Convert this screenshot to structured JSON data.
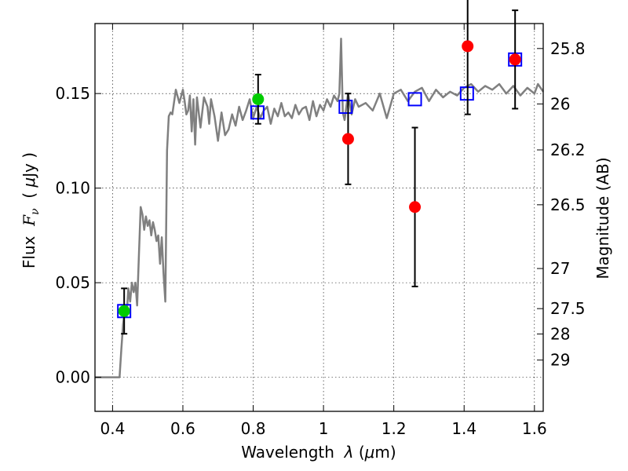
{
  "chart_data": {
    "type": "scatter",
    "xlabel_parts": [
      "Wavelength  ",
      "λ",
      " (",
      "μ",
      "m)"
    ],
    "ylabel_parts": [
      "Flux  ",
      "F",
      "ν",
      "  ( ",
      "μ",
      "Jy )"
    ],
    "y2label": "Magnitude (AB)",
    "xlim": [
      0.35,
      1.625
    ],
    "ylim": [
      -0.018,
      0.187
    ],
    "grid": true,
    "grid_style": "dotted",
    "x_ticks": [
      0.4,
      0.6,
      0.8,
      1.0,
      1.2,
      1.4,
      1.6
    ],
    "x_tick_labels": [
      "0.4",
      "0.6",
      "0.8",
      "1",
      "1.2",
      "1.4",
      "1.6"
    ],
    "y_ticks": [
      0.0,
      0.05,
      0.1,
      0.15
    ],
    "y_tick_labels": [
      "0.00",
      "0.05",
      "0.10",
      "0.15"
    ],
    "mag_ticks": [
      {
        "label": "25.8",
        "flux": 0.1738
      },
      {
        "label": "26",
        "flux": 0.1445
      },
      {
        "label": "26.2",
        "flux": 0.1202
      },
      {
        "label": "26.5",
        "flux": 0.0912
      },
      {
        "label": "27",
        "flux": 0.0575
      },
      {
        "label": "27.5",
        "flux": 0.0363
      },
      {
        "label": "28",
        "flux": 0.0229
      },
      {
        "label": "29",
        "flux": 0.0091
      }
    ],
    "model_spectrum": {
      "color": "#808080",
      "x": [
        0.35,
        0.36,
        0.37,
        0.38,
        0.39,
        0.4,
        0.41,
        0.42,
        0.425,
        0.43,
        0.435,
        0.44,
        0.445,
        0.45,
        0.455,
        0.46,
        0.465,
        0.47,
        0.475,
        0.48,
        0.485,
        0.49,
        0.495,
        0.5,
        0.505,
        0.51,
        0.515,
        0.52,
        0.525,
        0.53,
        0.535,
        0.54,
        0.545,
        0.55,
        0.555,
        0.56,
        0.565,
        0.57,
        0.58,
        0.59,
        0.6,
        0.605,
        0.61,
        0.615,
        0.62,
        0.625,
        0.63,
        0.635,
        0.64,
        0.65,
        0.66,
        0.67,
        0.675,
        0.68,
        0.69,
        0.7,
        0.71,
        0.72,
        0.73,
        0.74,
        0.75,
        0.76,
        0.77,
        0.78,
        0.79,
        0.8,
        0.81,
        0.82,
        0.83,
        0.84,
        0.85,
        0.86,
        0.87,
        0.88,
        0.89,
        0.9,
        0.91,
        0.92,
        0.93,
        0.94,
        0.95,
        0.96,
        0.97,
        0.98,
        0.99,
        1.0,
        1.01,
        1.02,
        1.03,
        1.04,
        1.045,
        1.05,
        1.055,
        1.06,
        1.07,
        1.08,
        1.09,
        1.1,
        1.12,
        1.14,
        1.16,
        1.18,
        1.2,
        1.22,
        1.24,
        1.26,
        1.28,
        1.3,
        1.32,
        1.34,
        1.36,
        1.38,
        1.4,
        1.42,
        1.44,
        1.46,
        1.48,
        1.5,
        1.52,
        1.54,
        1.56,
        1.58,
        1.6,
        1.61,
        1.625
      ],
      "y": [
        0.0,
        0.0,
        0.0,
        0.0,
        0.0,
        0.0,
        0.0,
        0.0,
        0.015,
        0.028,
        0.036,
        0.032,
        0.047,
        0.04,
        0.05,
        0.045,
        0.05,
        0.038,
        0.065,
        0.09,
        0.086,
        0.078,
        0.085,
        0.08,
        0.083,
        0.075,
        0.082,
        0.078,
        0.072,
        0.075,
        0.06,
        0.074,
        0.055,
        0.04,
        0.12,
        0.138,
        0.14,
        0.139,
        0.152,
        0.145,
        0.152,
        0.146,
        0.139,
        0.141,
        0.149,
        0.13,
        0.147,
        0.123,
        0.148,
        0.132,
        0.148,
        0.143,
        0.134,
        0.147,
        0.138,
        0.125,
        0.14,
        0.128,
        0.131,
        0.139,
        0.133,
        0.143,
        0.136,
        0.141,
        0.147,
        0.137,
        0.143,
        0.137,
        0.141,
        0.143,
        0.134,
        0.142,
        0.138,
        0.145,
        0.138,
        0.14,
        0.137,
        0.144,
        0.139,
        0.142,
        0.143,
        0.136,
        0.146,
        0.138,
        0.144,
        0.141,
        0.147,
        0.143,
        0.149,
        0.146,
        0.15,
        0.179,
        0.14,
        0.136,
        0.15,
        0.139,
        0.147,
        0.143,
        0.145,
        0.141,
        0.15,
        0.137,
        0.15,
        0.152,
        0.146,
        0.151,
        0.153,
        0.146,
        0.152,
        0.148,
        0.151,
        0.149,
        0.153,
        0.155,
        0.151,
        0.154,
        0.152,
        0.155,
        0.15,
        0.154,
        0.149,
        0.153,
        0.15,
        0.155,
        0.151
      ]
    },
    "series": [
      {
        "marker": "square",
        "color": "#0000ff",
        "x": [
          0.433,
          0.812,
          1.063,
          1.26,
          1.408,
          1.545
        ],
        "y": [
          0.035,
          0.14,
          0.143,
          0.147,
          0.15,
          0.168
        ]
      },
      {
        "marker": "circle",
        "color": "#00cc00",
        "x": [
          0.433,
          0.814
        ],
        "y": [
          0.035,
          0.147
        ],
        "yerr": [
          0.012,
          0.013
        ]
      },
      {
        "marker": "circle",
        "color": "#ff0000",
        "x": [
          1.07,
          1.26,
          1.41,
          1.545
        ],
        "y": [
          0.126,
          0.09,
          0.175,
          0.168
        ],
        "yerr": [
          0.024,
          0.042,
          0.036,
          0.026
        ]
      }
    ]
  }
}
